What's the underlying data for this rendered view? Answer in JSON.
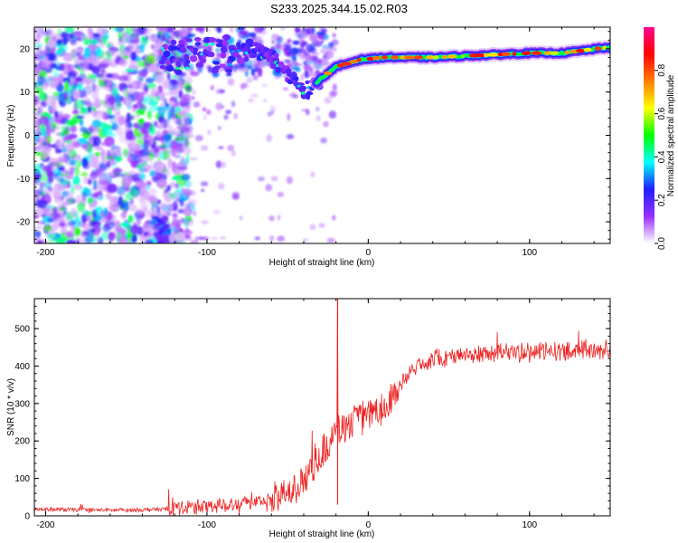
{
  "title": "S233.2025.344.15.02.R03",
  "chart_data": [
    {
      "type": "heatmap",
      "title": "S233.2025.344.15.02.R03",
      "xlabel": "Height of straight line (km)",
      "ylabel": "Frequency (Hz)",
      "xlim": [
        -207,
        150
      ],
      "ylim": [
        -25,
        25
      ],
      "x_ticks": [
        -200,
        -100,
        0,
        100
      ],
      "y_ticks": [
        -20,
        -10,
        0,
        10,
        20
      ],
      "colorbar": {
        "label": "Normalized spectral amplitude",
        "range": [
          0.0,
          1.0
        ],
        "ticks": [
          "0.0",
          "0.2",
          "0.4",
          "0.6",
          "0.8"
        ],
        "colors": [
          "#ffffff",
          "#9b30ff",
          "#1e1eff",
          "#00ffff",
          "#00ff00",
          "#ffff00",
          "#ff7f00",
          "#ff0000",
          "#ff0090"
        ]
      },
      "ridge": {
        "description_points_km_hz": [
          [
            -75,
            20
          ],
          [
            -60,
            18
          ],
          [
            -50,
            14
          ],
          [
            -40,
            10
          ],
          [
            -33,
            12
          ],
          [
            -20,
            15.8
          ],
          [
            -5,
            17.5
          ],
          [
            10,
            18
          ],
          [
            40,
            18
          ],
          [
            70,
            18.5
          ],
          [
            100,
            19
          ],
          [
            120,
            19
          ],
          [
            148,
            20.3
          ]
        ]
      },
      "noise_region_km": [
        -207,
        -120
      ]
    },
    {
      "type": "line",
      "xlabel": "Height of straight line (km)",
      "ylabel": "SNR (10 * v/v)",
      "xlim": [
        -207,
        150
      ],
      "ylim": [
        0,
        580
      ],
      "x_ticks": [
        -200,
        -100,
        0,
        100
      ],
      "y_ticks": [
        0,
        100,
        200,
        300,
        400,
        500
      ],
      "series": [
        {
          "name": "SNR",
          "color": "#ee2222",
          "trend_km": [
            -207,
            -180,
            -150,
            -125,
            -100,
            -80,
            -60,
            -50,
            -40,
            -30,
            -20,
            -10,
            0,
            10,
            20,
            30,
            40,
            60,
            80,
            100,
            120,
            150
          ],
          "trend_snr": [
            18,
            16,
            15,
            18,
            25,
            35,
            40,
            55,
            100,
            160,
            220,
            250,
            270,
            290,
            350,
            400,
            420,
            430,
            435,
            440,
            440,
            445
          ],
          "spike": {
            "x": -19,
            "y": 580
          }
        }
      ]
    }
  ]
}
